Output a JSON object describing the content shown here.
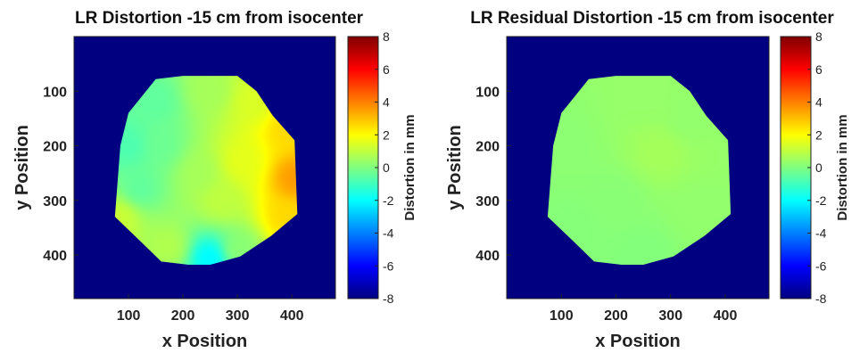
{
  "chart_data": [
    {
      "type": "heatmap",
      "title": "LR Distortion -15 cm from isocenter",
      "xlabel": "x Position",
      "ylabel": "y Position",
      "xlim": [
        0,
        480
      ],
      "ylim": [
        0,
        480
      ],
      "y_reversed": true,
      "x_ticks": [
        100,
        200,
        300,
        400
      ],
      "y_ticks": [
        100,
        200,
        300,
        400
      ],
      "colormap": "jet",
      "background_value": -8,
      "colorbar": {
        "label": "Distortion in mm",
        "range": [
          -8,
          8
        ],
        "ticks": [
          8,
          6,
          4,
          2,
          0,
          -2,
          -4,
          -6,
          -8
        ]
      },
      "region_boundary": [
        [
          150,
          78
        ],
        [
          200,
          72
        ],
        [
          300,
          72
        ],
        [
          335,
          100
        ],
        [
          365,
          145
        ],
        [
          405,
          190
        ],
        [
          410,
          325
        ],
        [
          362,
          365
        ],
        [
          305,
          403
        ],
        [
          250,
          418
        ],
        [
          210,
          418
        ],
        [
          160,
          412
        ],
        [
          125,
          378
        ],
        [
          75,
          330
        ],
        [
          85,
          200
        ],
        [
          100,
          140
        ]
      ],
      "samples": [
        {
          "x": 100,
          "y": 200,
          "value": -0.8
        },
        {
          "x": 150,
          "y": 120,
          "value": -0.5
        },
        {
          "x": 250,
          "y": 100,
          "value": 0.6
        },
        {
          "x": 330,
          "y": 120,
          "value": 1.4
        },
        {
          "x": 390,
          "y": 170,
          "value": 2.6
        },
        {
          "x": 405,
          "y": 260,
          "value": 3.6
        },
        {
          "x": 390,
          "y": 330,
          "value": 2.6
        },
        {
          "x": 300,
          "y": 390,
          "value": 0.2
        },
        {
          "x": 250,
          "y": 405,
          "value": -2.2
        },
        {
          "x": 175,
          "y": 385,
          "value": 0.8
        },
        {
          "x": 85,
          "y": 330,
          "value": 1.2
        },
        {
          "x": 120,
          "y": 280,
          "value": -0.5
        },
        {
          "x": 230,
          "y": 250,
          "value": 0.6
        },
        {
          "x": 310,
          "y": 230,
          "value": 1.6
        },
        {
          "x": 160,
          "y": 200,
          "value": -0.3
        },
        {
          "x": 270,
          "y": 300,
          "value": 1.0
        }
      ]
    },
    {
      "type": "heatmap",
      "title": "LR Residual Distortion -15 cm from isocenter",
      "xlabel": "x Position",
      "ylabel": "y Position",
      "xlim": [
        0,
        480
      ],
      "ylim": [
        0,
        480
      ],
      "y_reversed": true,
      "x_ticks": [
        100,
        200,
        300,
        400
      ],
      "y_ticks": [
        100,
        200,
        300,
        400
      ],
      "colormap": "jet",
      "background_value": -8,
      "colorbar": {
        "label": "Distortion in mm",
        "range": [
          -8,
          8
        ],
        "ticks": [
          8,
          6,
          4,
          2,
          0,
          -2,
          -4,
          -6,
          -8
        ]
      },
      "region_boundary": [
        [
          150,
          78
        ],
        [
          200,
          72
        ],
        [
          300,
          72
        ],
        [
          335,
          100
        ],
        [
          365,
          145
        ],
        [
          405,
          190
        ],
        [
          410,
          325
        ],
        [
          362,
          365
        ],
        [
          305,
          403
        ],
        [
          250,
          418
        ],
        [
          210,
          418
        ],
        [
          160,
          412
        ],
        [
          125,
          378
        ],
        [
          75,
          330
        ],
        [
          85,
          200
        ],
        [
          100,
          140
        ]
      ],
      "samples": [
        {
          "x": 100,
          "y": 200,
          "value": 0.2
        },
        {
          "x": 250,
          "y": 110,
          "value": 0.35
        },
        {
          "x": 330,
          "y": 150,
          "value": 0.3
        },
        {
          "x": 280,
          "y": 210,
          "value": 0.6
        },
        {
          "x": 200,
          "y": 300,
          "value": 0.15
        },
        {
          "x": 350,
          "y": 320,
          "value": 0.3
        },
        {
          "x": 250,
          "y": 400,
          "value": 0.05
        },
        {
          "x": 120,
          "y": 350,
          "value": 0.1
        }
      ]
    }
  ]
}
